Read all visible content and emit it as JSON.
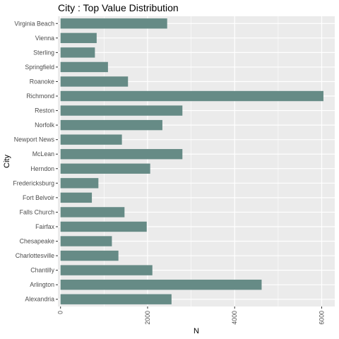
{
  "chart_data": {
    "type": "bar",
    "orientation": "horizontal",
    "title": "City : Top Value Distribution",
    "xlabel": "N",
    "ylabel": "City",
    "xlim": [
      -60,
      6300
    ],
    "x_ticks": [
      0,
      2000,
      4000,
      6000
    ],
    "grid": true,
    "bar_color": "#668b86",
    "panel_color": "#ebebeb",
    "categories": [
      "Virginia Beach",
      "Vienna",
      "Sterling",
      "Springfield",
      "Roanoke",
      "Richmond",
      "Reston",
      "Norfolk",
      "Newport News",
      "McLean",
      "Herndon",
      "Fredericksburg",
      "Fort Belvoir",
      "Falls Church",
      "Fairfax",
      "Chesapeake",
      "Charlottesville",
      "Chantilly",
      "Arlington",
      "Alexandria"
    ],
    "values": [
      2450,
      830,
      790,
      1090,
      1550,
      6040,
      2800,
      2340,
      1410,
      2800,
      2060,
      870,
      720,
      1470,
      1980,
      1180,
      1330,
      2110,
      4620,
      2550
    ]
  }
}
